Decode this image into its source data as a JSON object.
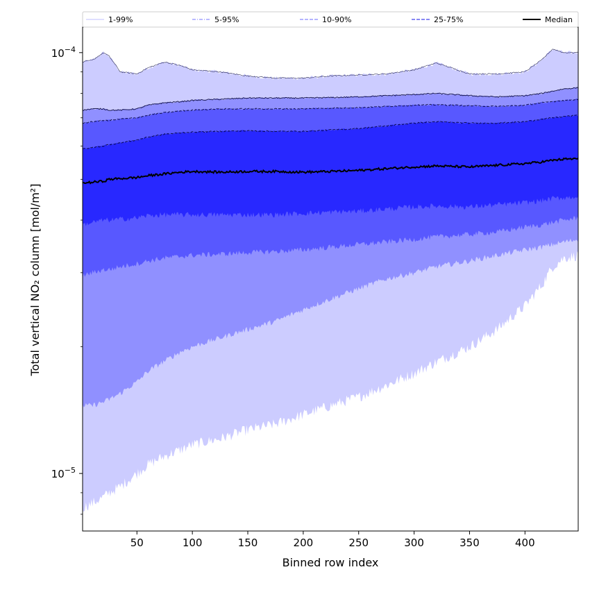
{
  "chart_data": {
    "type": "area",
    "xlabel": "Binned row index",
    "ylabel": "Total vertical NO₂ column [mol/m²]",
    "yscale": "log",
    "xlim": [
      1,
      448
    ],
    "ylim": [
      7.3e-06,
      0.000115
    ],
    "x_ticks": [
      50,
      100,
      150,
      200,
      250,
      300,
      350,
      400
    ],
    "y_major_ticks": [
      {
        "value": 0.0001,
        "base": "10",
        "exp": "−4"
      },
      {
        "value": 1e-05,
        "base": "10",
        "exp": "−5"
      }
    ],
    "y_minor_ticks": [
      8e-06,
      9e-06,
      2e-05,
      3e-05,
      4e-05,
      5e-05,
      6e-05,
      7e-05,
      8e-05,
      9e-05
    ],
    "x": [
      1,
      10,
      20,
      25,
      35,
      50,
      60,
      75,
      90,
      100,
      125,
      150,
      175,
      200,
      225,
      250,
      275,
      300,
      320,
      350,
      375,
      400,
      415,
      425,
      435,
      448
    ],
    "bands": [
      {
        "name": "1-99%",
        "color": "#ccccff",
        "lower": [
          8.3e-06,
          8.5e-06,
          8.8e-06,
          9e-06,
          9.3e-06,
          1e-05,
          1.05e-05,
          1.1e-05,
          1.14e-05,
          1.17e-05,
          1.21e-05,
          1.27e-05,
          1.31e-05,
          1.38e-05,
          1.45e-05,
          1.52e-05,
          1.62e-05,
          1.73e-05,
          1.84e-05,
          2e-05,
          2.2e-05,
          2.5e-05,
          2.8e-05,
          3.1e-05,
          3.25e-05,
          3.3e-05
        ],
        "upper": [
          9.5e-05,
          9.6e-05,
          0.0001,
          9.8e-05,
          9e-05,
          8.9e-05,
          9.2e-05,
          9.5e-05,
          9.3e-05,
          9.1e-05,
          9e-05,
          8.8e-05,
          8.7e-05,
          8.7e-05,
          8.8e-05,
          8.85e-05,
          8.9e-05,
          9.1e-05,
          9.45e-05,
          8.9e-05,
          8.9e-05,
          9e-05,
          9.6e-05,
          0.000102,
          0.0001,
          0.0001
        ]
      },
      {
        "name": "5-95%",
        "color": "#9090ff",
        "lower": [
          1.45e-05,
          1.45e-05,
          1.48e-05,
          1.5e-05,
          1.55e-05,
          1.65e-05,
          1.75e-05,
          1.85e-05,
          1.95e-05,
          2e-05,
          2.1e-05,
          2.2e-05,
          2.3e-05,
          2.45e-05,
          2.6e-05,
          2.75e-05,
          2.9e-05,
          3e-05,
          3.1e-05,
          3.2e-05,
          3.3e-05,
          3.4e-05,
          3.45e-05,
          3.5e-05,
          3.55e-05,
          3.6e-05
        ],
        "upper": [
          7.3e-05,
          7.35e-05,
          7.35e-05,
          7.3e-05,
          7.3e-05,
          7.35e-05,
          7.5e-05,
          7.6e-05,
          7.65e-05,
          7.7e-05,
          7.75e-05,
          7.8e-05,
          7.8e-05,
          7.8e-05,
          7.82e-05,
          7.85e-05,
          7.9e-05,
          7.95e-05,
          8e-05,
          7.9e-05,
          7.85e-05,
          7.9e-05,
          8e-05,
          8.1e-05,
          8.2e-05,
          8.25e-05
        ]
      },
      {
        "name": "10-90%",
        "color": "#5858ff",
        "lower": [
          2.95e-05,
          3e-05,
          3.05e-05,
          3.05e-05,
          3.1e-05,
          3.15e-05,
          3.2e-05,
          3.25e-05,
          3.28e-05,
          3.3e-05,
          3.32e-05,
          3.35e-05,
          3.37e-05,
          3.4e-05,
          3.45e-05,
          3.5e-05,
          3.55e-05,
          3.6e-05,
          3.65e-05,
          3.7e-05,
          3.75e-05,
          3.85e-05,
          3.9e-05,
          3.95e-05,
          4e-05,
          4.05e-05
        ],
        "upper": [
          6.8e-05,
          6.85e-05,
          6.9e-05,
          6.9e-05,
          6.95e-05,
          7e-05,
          7.1e-05,
          7.2e-05,
          7.27e-05,
          7.3e-05,
          7.35e-05,
          7.35e-05,
          7.35e-05,
          7.35e-05,
          7.38e-05,
          7.4e-05,
          7.45e-05,
          7.5e-05,
          7.52e-05,
          7.48e-05,
          7.45e-05,
          7.5e-05,
          7.6e-05,
          7.65e-05,
          7.7e-05,
          7.75e-05
        ]
      },
      {
        "name": "25-75%",
        "color": "#2828ff",
        "lower": [
          3.9e-05,
          3.95e-05,
          4e-05,
          4e-05,
          4.02e-05,
          4.05e-05,
          4.1e-05,
          4.12e-05,
          4.12e-05,
          4.12e-05,
          4.12e-05,
          4.12e-05,
          4.12e-05,
          4.15e-05,
          4.18e-05,
          4.2e-05,
          4.25e-05,
          4.3e-05,
          4.32e-05,
          4.3e-05,
          4.35e-05,
          4.4e-05,
          4.45e-05,
          4.5e-05,
          4.52e-05,
          4.55e-05
        ],
        "upper": [
          5.9e-05,
          5.95e-05,
          6e-05,
          6.05e-05,
          6.1e-05,
          6.2e-05,
          6.3e-05,
          6.4e-05,
          6.45e-05,
          6.47e-05,
          6.5e-05,
          6.52e-05,
          6.5e-05,
          6.5e-05,
          6.55e-05,
          6.6e-05,
          6.7e-05,
          6.8e-05,
          6.85e-05,
          6.8e-05,
          6.8e-05,
          6.85e-05,
          6.95e-05,
          7e-05,
          7.05e-05,
          7.1e-05
        ]
      }
    ],
    "median": {
      "name": "Median",
      "color": "#000000",
      "values": [
        4.9e-05,
        4.92e-05,
        4.95e-05,
        5e-05,
        5.02e-05,
        5.05e-05,
        5.1e-05,
        5.15e-05,
        5.2e-05,
        5.22e-05,
        5.2e-05,
        5.22e-05,
        5.22e-05,
        5.2e-05,
        5.22e-05,
        5.25e-05,
        5.3e-05,
        5.35e-05,
        5.38e-05,
        5.35e-05,
        5.4e-05,
        5.45e-05,
        5.5e-05,
        5.55e-05,
        5.58e-05,
        5.6e-05
      ]
    },
    "legend": [
      {
        "label": "1-99%",
        "color": "#ccccff",
        "style": "solid"
      },
      {
        "label": "5-95%",
        "color": "#9090ff",
        "style": "dashdot"
      },
      {
        "label": "10-90%",
        "color": "#8888ff",
        "style": "dashed"
      },
      {
        "label": "25-75%",
        "color": "#4040ee",
        "style": "dashed"
      },
      {
        "label": "Median",
        "color": "#000000",
        "style": "solid"
      }
    ],
    "legend_placement": "top"
  }
}
